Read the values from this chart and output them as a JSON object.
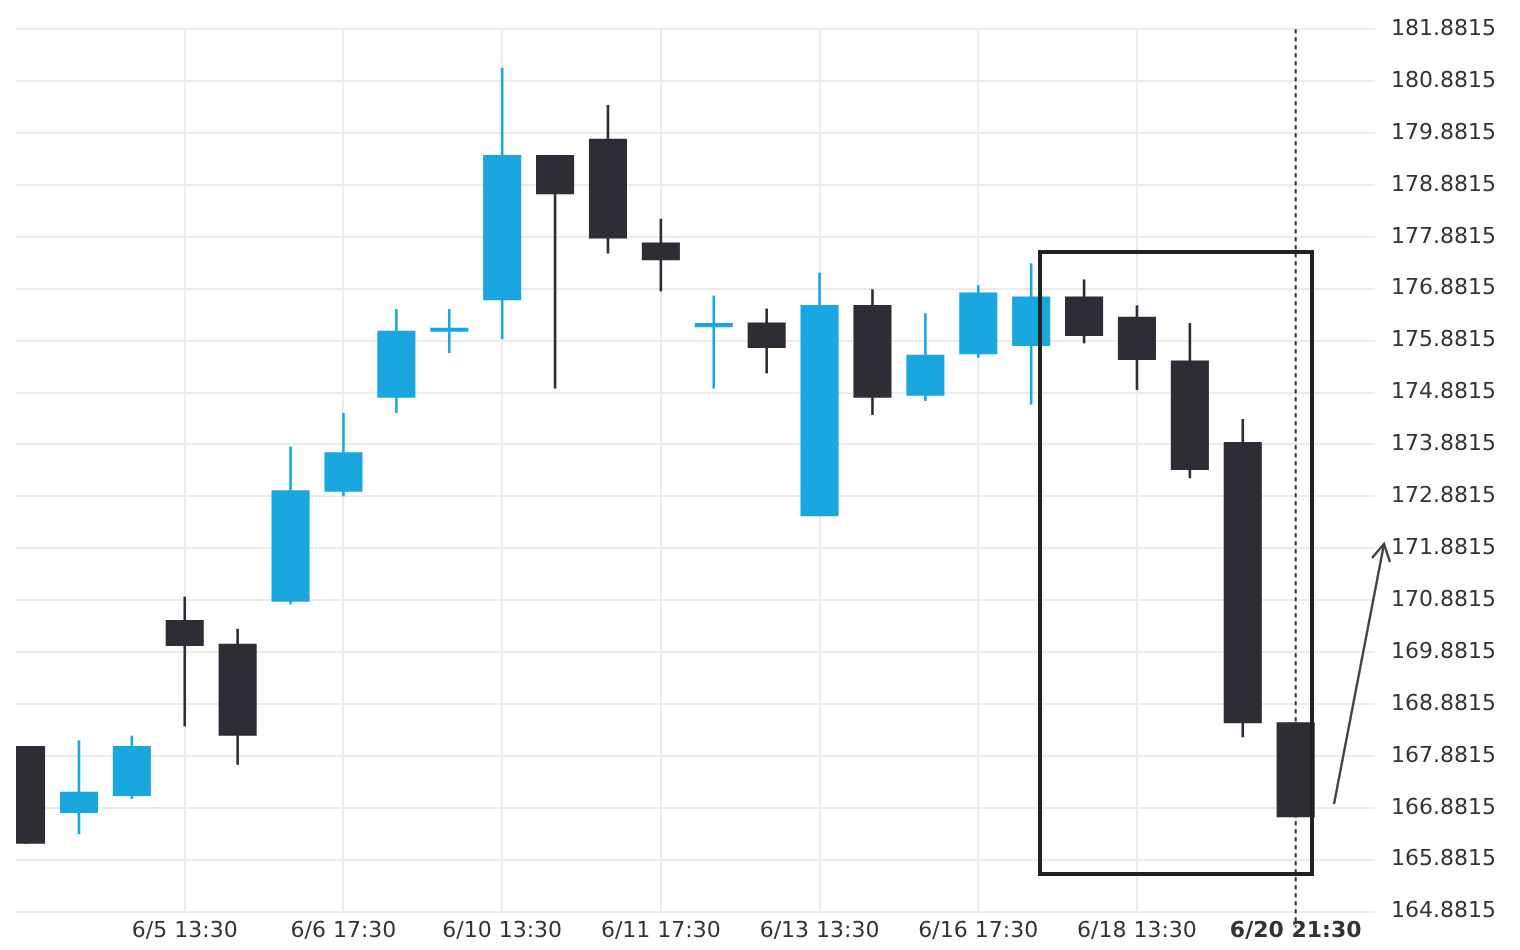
{
  "chart_data": {
    "type": "candlestick",
    "categories": [
      null,
      null,
      null,
      "6/5 13:30",
      null,
      null,
      "6/6 17:30",
      null,
      null,
      "6/10 13:30",
      null,
      null,
      "6/11 17:30",
      null,
      null,
      "6/13 13:30",
      null,
      null,
      "6/16 17:30",
      null,
      null,
      "6/18 13:30",
      null,
      null,
      "6/20 21:30"
    ],
    "ohlc": [
      [
        168.07,
        168.07,
        166.19,
        166.19
      ],
      [
        166.78,
        168.18,
        166.37,
        167.19
      ],
      [
        167.11,
        168.27,
        167.05,
        168.07
      ],
      [
        170.5,
        170.95,
        168.45,
        170.0
      ],
      [
        170.04,
        170.33,
        167.71,
        168.27
      ],
      [
        170.85,
        173.84,
        170.8,
        173.0
      ],
      [
        172.97,
        174.49,
        172.88,
        173.73
      ],
      [
        174.78,
        176.49,
        174.49,
        176.07
      ],
      [
        176.09,
        176.49,
        175.64,
        176.13
      ],
      [
        176.66,
        181.14,
        175.91,
        179.46
      ],
      [
        179.46,
        179.46,
        174.96,
        178.7
      ],
      [
        179.77,
        180.42,
        177.56,
        177.85
      ],
      [
        177.77,
        178.23,
        176.83,
        177.43
      ],
      [
        176.14,
        176.75,
        174.96,
        176.22
      ],
      [
        176.23,
        176.5,
        175.25,
        175.74
      ],
      [
        172.5,
        177.19,
        172.5,
        176.57
      ],
      [
        176.57,
        176.87,
        174.45,
        174.78
      ],
      [
        174.82,
        176.41,
        174.72,
        175.61
      ],
      [
        175.62,
        176.95,
        175.55,
        176.81
      ],
      [
        175.78,
        177.37,
        174.65,
        176.73
      ],
      [
        176.73,
        177.06,
        175.83,
        175.97
      ],
      [
        176.34,
        176.56,
        174.93,
        175.51
      ],
      [
        175.5,
        176.22,
        173.23,
        173.39
      ],
      [
        173.93,
        174.37,
        168.24,
        168.51
      ],
      [
        168.53,
        168.53,
        166.7,
        166.7
      ]
    ],
    "colors": [
      "#2d2d35",
      "#1aa7e0",
      "#1aa7e0",
      "#2d2d35",
      "#2d2d35",
      "#1aa7e0",
      "#1aa7e0",
      "#1aa7e0",
      "#1aa7e0",
      "#1aa7e0",
      "#2d2d35",
      "#2d2d35",
      "#2d2d35",
      "#1aa7e0",
      "#2d2d35",
      "#1aa7e0",
      "#2d2d35",
      "#1aa7e0",
      "#1aa7e0",
      "#1aa7e0",
      "#2d2d35",
      "#2d2d35",
      "#2d2d35",
      "#2d2d35",
      "#2d2d35"
    ],
    "ylim": [
      164.8815,
      181.8815
    ],
    "yticks": [
      164.8815,
      165.8815,
      166.8815,
      167.8815,
      168.8815,
      169.8815,
      170.8815,
      171.8815,
      172.8815,
      173.8815,
      174.8815,
      175.8815,
      176.8815,
      177.8815,
      178.8815,
      179.8815,
      180.8815,
      181.8815
    ],
    "ref_lines": [
      {
        "axis": "x",
        "value": "6/20 21:30",
        "color": "#2d2d35",
        "line_style": "dotted"
      }
    ],
    "grid": true
  }
}
